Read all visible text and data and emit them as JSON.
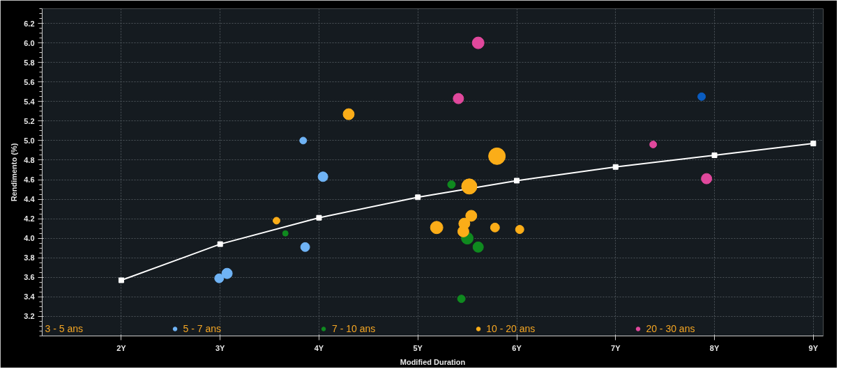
{
  "chart_data": {
    "type": "bubble",
    "xlabel": "Modified Duration",
    "ylabel": "Rendimento (%)",
    "xlim": [
      1.2,
      9.1
    ],
    "ylim": [
      3.0,
      6.35
    ],
    "xticks": [
      {
        "value": 2,
        "label": "2Y"
      },
      {
        "value": 3,
        "label": "3Y"
      },
      {
        "value": 4,
        "label": "4Y"
      },
      {
        "value": 5,
        "label": "5Y"
      },
      {
        "value": 6,
        "label": "6Y"
      },
      {
        "value": 7,
        "label": "7Y"
      },
      {
        "value": 8,
        "label": "8Y"
      },
      {
        "value": 9,
        "label": "9Y"
      }
    ],
    "yticks": [
      3.2,
      3.4,
      3.6,
      3.8,
      {
        "value": 4,
        "label": "4.0"
      },
      4.2,
      4.4,
      4.6,
      4.8,
      {
        "value": 5,
        "label": "5.0"
      },
      5.2,
      5.4,
      5.6,
      5.8,
      {
        "value": 6,
        "label": "6.0"
      },
      6.2
    ],
    "grid": true,
    "legend": "bottom",
    "annotations": [
      "3 - 5 ans"
    ],
    "series": [
      {
        "type": "line",
        "color": "#ffffff",
        "marker": "square",
        "line_style": "solid",
        "x": [
          2,
          3,
          4,
          5,
          6,
          7,
          8,
          9
        ],
        "values": [
          3.57,
          3.94,
          4.21,
          4.42,
          4.59,
          4.73,
          4.85,
          4.97
        ]
      },
      {
        "name": "5 - 7 ans",
        "color": "#6fb3f5",
        "x": [
          3.84,
          4.04,
          3.86,
          2.99,
          3.07
        ],
        "values": [
          5.0,
          4.63,
          3.91,
          3.59,
          3.64
        ],
        "sizes": [
          0.17,
          0.34,
          0.29,
          0.29,
          0.39
        ]
      },
      {
        "name": "7 - 10 ans",
        "color": "#0f8a1f",
        "x": [
          5.34,
          3.66,
          5.5,
          5.61,
          5.44
        ],
        "values": [
          4.55,
          4.05,
          4.0,
          3.91,
          3.38
        ],
        "sizes": [
          0.21,
          0.11,
          0.5,
          0.39,
          0.21
        ]
      },
      {
        "name": "10 - 20 ans",
        "color": "#fbad18",
        "x": [
          4.3,
          3.57,
          5.8,
          5.52,
          5.54,
          5.47,
          5.46,
          5.19,
          5.78,
          6.03
        ],
        "values": [
          5.27,
          4.18,
          4.84,
          4.53,
          4.23,
          4.15,
          4.07,
          4.11,
          4.11,
          4.09
        ],
        "sizes": [
          0.44,
          0.17,
          1,
          0.84,
          0.44,
          0.44,
          0.44,
          0.56,
          0.29,
          0.25
        ]
      },
      {
        "name": "20 - 30 ans",
        "color": "#e0489c",
        "x": [
          5.61,
          5.41,
          7.38,
          7.92
        ],
        "values": [
          6.0,
          5.43,
          4.96,
          4.61
        ],
        "sizes": [
          0.5,
          0.39,
          0.17,
          0.39
        ]
      },
      {
        "color": "#0a5cc0",
        "x": [
          7.87
        ],
        "values": [
          5.45
        ],
        "sizes": [
          0.21
        ]
      }
    ]
  }
}
